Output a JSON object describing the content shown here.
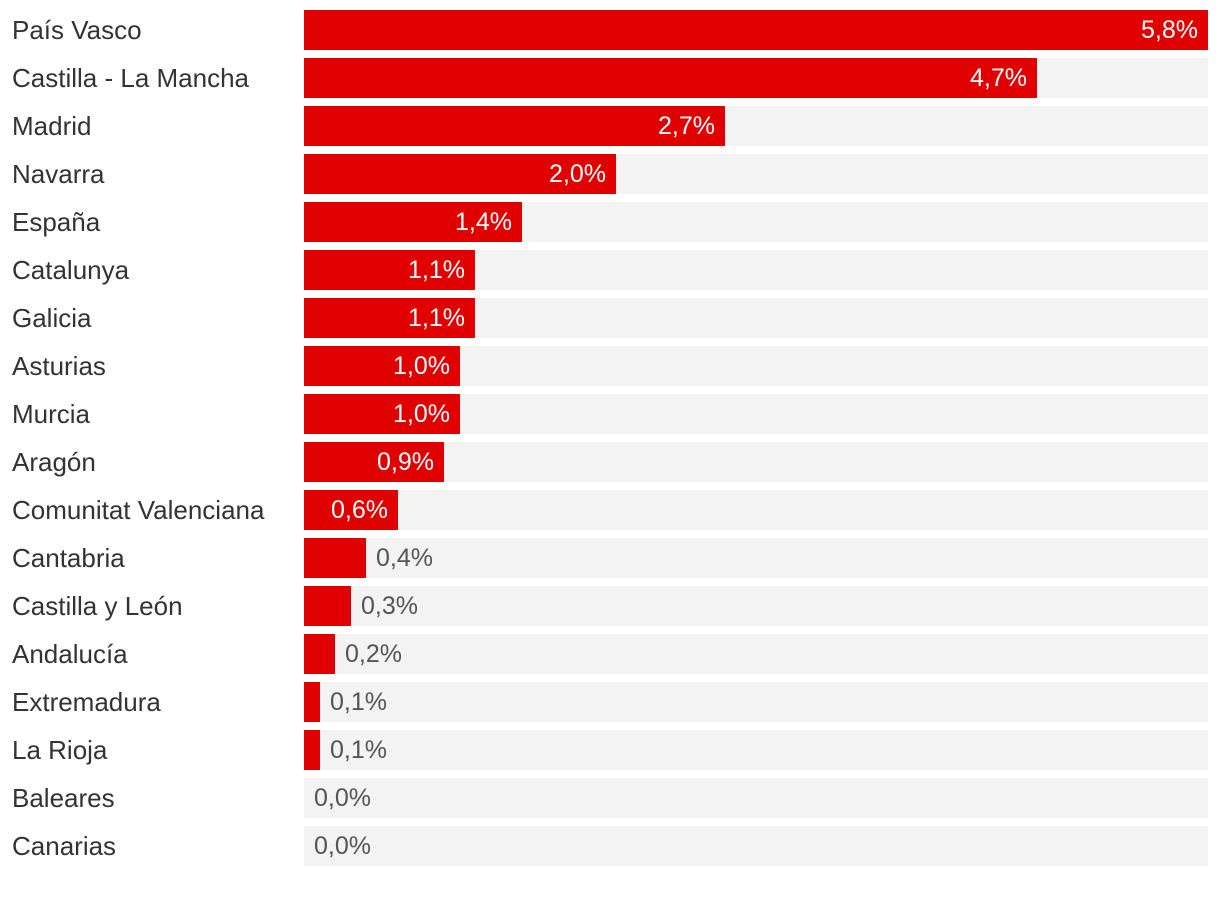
{
  "chart_data": {
    "type": "bar",
    "orientation": "horizontal",
    "xlim": [
      0,
      5.8
    ],
    "bar_color": "#e00000",
    "track_color": "#f3f3f3",
    "categories": [
      "País Vasco",
      "Castilla - La Mancha",
      "Madrid",
      "Navarra",
      "España",
      "Catalunya",
      "Galicia",
      "Asturias",
      "Murcia",
      "Aragón",
      "Comunitat Valenciana",
      "Cantabria",
      "Castilla y León",
      "Andalucía",
      "Extremadura",
      "La Rioja",
      "Baleares",
      "Canarias"
    ],
    "values": [
      5.8,
      4.7,
      2.7,
      2.0,
      1.4,
      1.1,
      1.1,
      1.0,
      1.0,
      0.9,
      0.6,
      0.4,
      0.3,
      0.2,
      0.1,
      0.1,
      0.0,
      0.0
    ],
    "value_labels": [
      "5,8%",
      "4,7%",
      "2,7%",
      "2,0%",
      "1,4%",
      "1,1%",
      "1,1%",
      "1,0%",
      "1,0%",
      "0,9%",
      "0,6%",
      "0,4%",
      "0,3%",
      "0,2%",
      "0,1%",
      "0,1%",
      "0,0%",
      "0,0%"
    ]
  }
}
